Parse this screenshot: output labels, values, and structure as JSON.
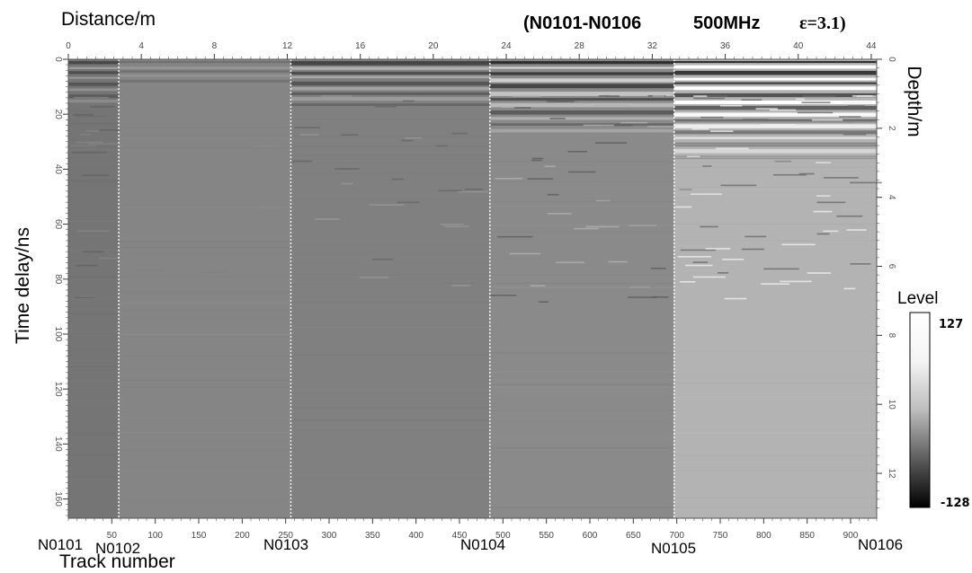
{
  "chart_data": {
    "type": "heatmap",
    "title": "(N0101-N0106",
    "frequency": "500MHz",
    "permittivity": "ε=3.1)",
    "xlabel_top": "Distance/m",
    "xlabel_bottom": "Track number",
    "ylabel_left": "Time delay/ns",
    "ylabel_right": "Depth/m",
    "colorbar": {
      "label": "Level",
      "max": "127",
      "min": "-128",
      "colors": [
        "#000000",
        "#ffffff"
      ]
    },
    "distance_ticks": [
      "0",
      "4",
      "8",
      "12",
      "16",
      "20",
      "24",
      "28",
      "32",
      "36",
      "40",
      "44"
    ],
    "distance_range": [
      0,
      44.3
    ],
    "time_ticks": [
      "0",
      "20",
      "40",
      "60",
      "80",
      "100",
      "120",
      "140",
      "160"
    ],
    "time_range": [
      0,
      167
    ],
    "depth_ticks": [
      "0",
      "2",
      "4",
      "6",
      "8",
      "10",
      "12"
    ],
    "depth_max_at_time_range": 13.3,
    "track_ticks": [
      "50",
      "100",
      "150",
      "200",
      "250",
      "300",
      "350",
      "400",
      "450",
      "500",
      "550",
      "600",
      "650",
      "700",
      "750",
      "800",
      "850",
      "900"
    ],
    "track_range": [
      0,
      930
    ],
    "profiles": [
      {
        "name": "N0101",
        "start_track": 0
      },
      {
        "name": "N0102",
        "start_track": 58
      },
      {
        "name": "N0103",
        "start_track": 256
      },
      {
        "name": "N0104",
        "start_track": 485
      },
      {
        "name": "N0105",
        "start_track": 697
      },
      {
        "name": "N0106",
        "start_track": 930
      }
    ],
    "segment_background_level": [
      0.46,
      0.52,
      0.5,
      0.54,
      0.7
    ],
    "segment_reflection_strength": [
      0.25,
      0.05,
      0.35,
      0.6,
      0.95
    ],
    "grid": false
  }
}
